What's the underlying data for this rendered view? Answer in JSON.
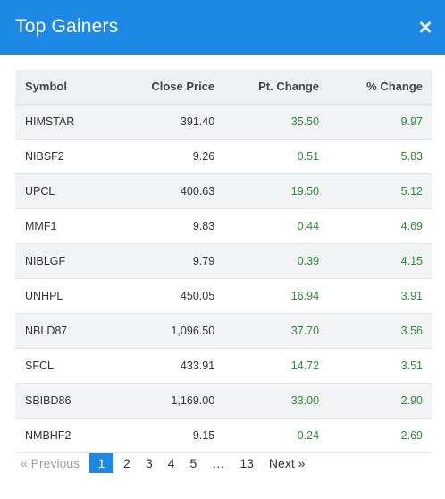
{
  "modal": {
    "title": "Top Gainers",
    "close_label": "×"
  },
  "table": {
    "headers": {
      "symbol": "Symbol",
      "close_price": "Close Price",
      "pt_change": "Pt. Change",
      "pct_change": "% Change"
    },
    "rows": [
      {
        "symbol": "HIMSTAR",
        "close_price": "391.40",
        "pt_change": "35.50",
        "pct_change": "9.97"
      },
      {
        "symbol": "NIBSF2",
        "close_price": "9.26",
        "pt_change": "0.51",
        "pct_change": "5.83"
      },
      {
        "symbol": "UPCL",
        "close_price": "400.63",
        "pt_change": "19.50",
        "pct_change": "5.12"
      },
      {
        "symbol": "MMF1",
        "close_price": "9.83",
        "pt_change": "0.44",
        "pct_change": "4.69"
      },
      {
        "symbol": "NIBLGF",
        "close_price": "9.79",
        "pt_change": "0.39",
        "pct_change": "4.15"
      },
      {
        "symbol": "UNHPL",
        "close_price": "450.05",
        "pt_change": "16.94",
        "pct_change": "3.91"
      },
      {
        "symbol": "NBLD87",
        "close_price": "1,096.50",
        "pt_change": "37.70",
        "pct_change": "3.56"
      },
      {
        "symbol": "SFCL",
        "close_price": "433.91",
        "pt_change": "14.72",
        "pct_change": "3.51"
      },
      {
        "symbol": "SBIBD86",
        "close_price": "1,169.00",
        "pt_change": "33.00",
        "pct_change": "2.90"
      },
      {
        "symbol": "NMBHF2",
        "close_price": "9.15",
        "pt_change": "0.24",
        "pct_change": "2.69"
      }
    ]
  },
  "pagination": {
    "previous": "« Previous",
    "pages": [
      "1",
      "2",
      "3",
      "4",
      "5"
    ],
    "ellipsis": "…",
    "last": "13",
    "next": "Next »",
    "current": "1"
  },
  "colors": {
    "header_bg": "#1e88e5",
    "positive": "#2e8b3a"
  }
}
